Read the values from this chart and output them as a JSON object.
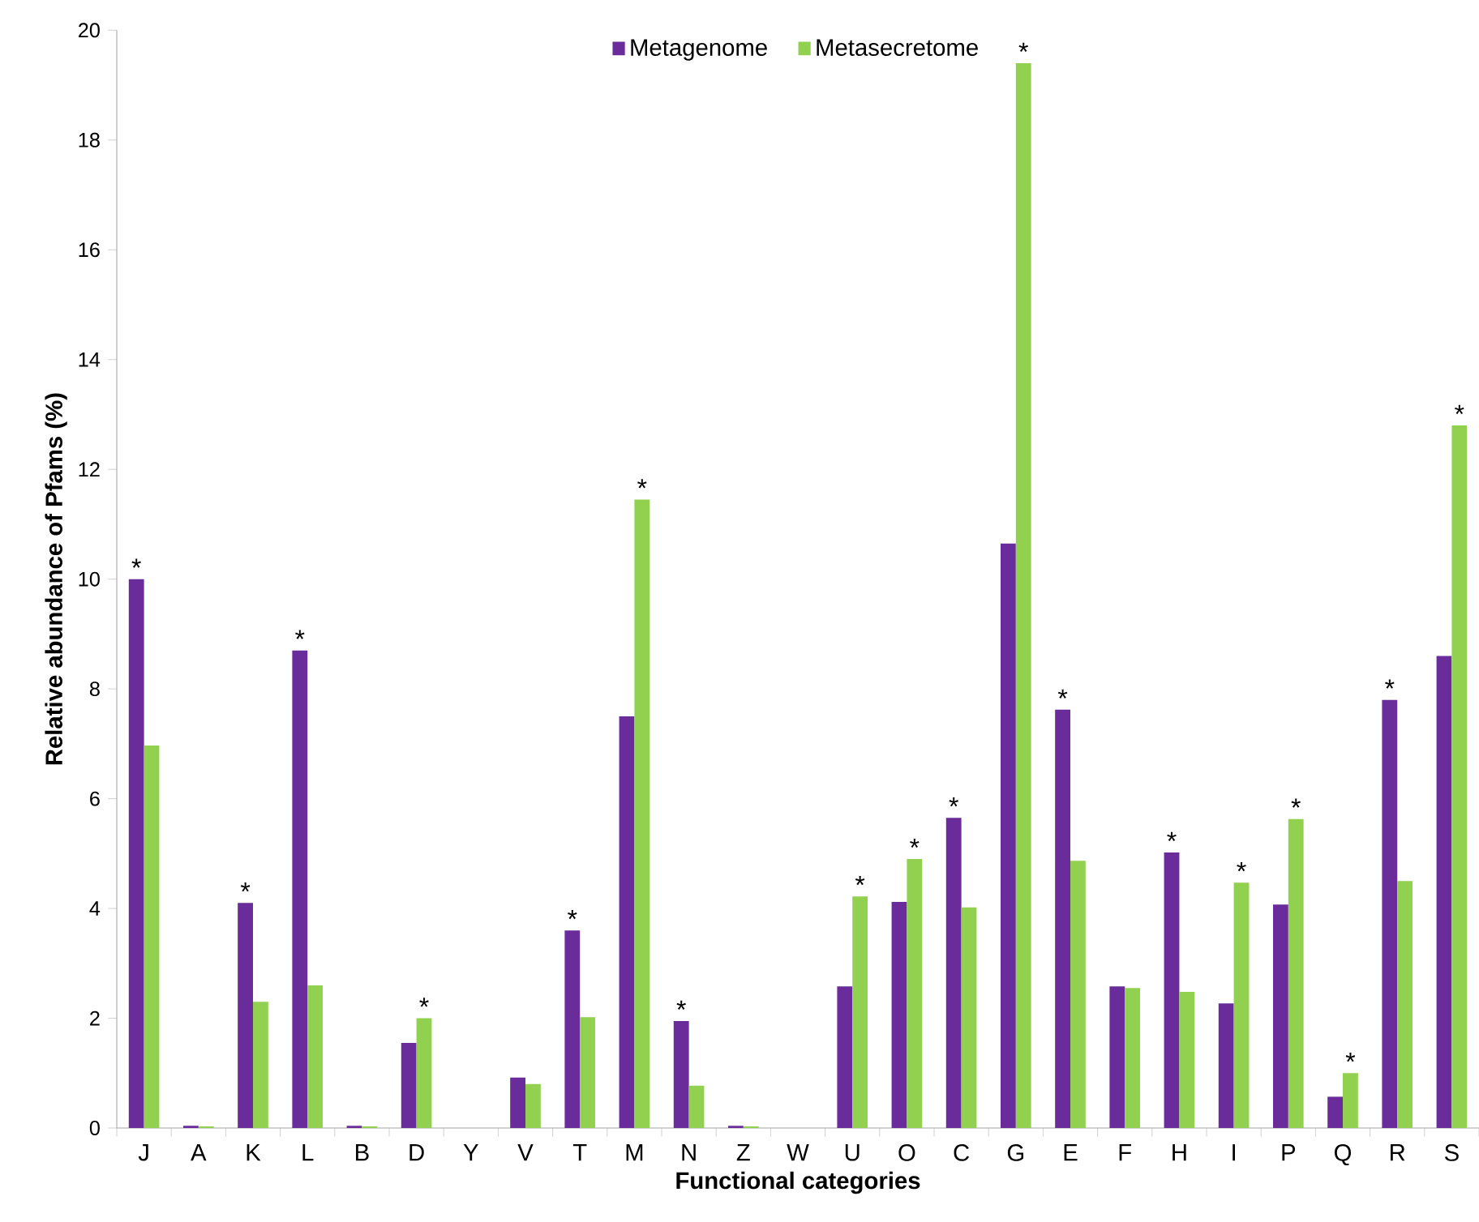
{
  "chart_data": {
    "type": "bar",
    "xlabel": "Functional categories",
    "ylabel": "Relative abundance of Pfams (%)",
    "categories": [
      "J",
      "A",
      "K",
      "L",
      "B",
      "D",
      "Y",
      "V",
      "T",
      "M",
      "N",
      "Z",
      "W",
      "U",
      "O",
      "C",
      "G",
      "E",
      "F",
      "H",
      "I",
      "P",
      "Q",
      "R",
      "S"
    ],
    "series": [
      {
        "name": "Metagenome",
        "color": "#6a2c9a",
        "values": [
          10.0,
          0.04,
          4.1,
          8.7,
          0.04,
          1.55,
          0,
          0.92,
          3.6,
          7.5,
          1.95,
          0.04,
          0,
          2.58,
          4.12,
          5.65,
          10.65,
          7.62,
          2.58,
          5.02,
          2.27,
          4.07,
          0.57,
          7.8,
          8.6
        ]
      },
      {
        "name": "Metasecretome",
        "color": "#92d050",
        "values": [
          6.97,
          0.03,
          2.3,
          2.6,
          0.03,
          2.0,
          0,
          0.8,
          2.02,
          11.45,
          0.77,
          0.03,
          0,
          4.22,
          4.9,
          4.02,
          19.4,
          4.87,
          2.55,
          2.48,
          4.47,
          5.63,
          1.0,
          4.5,
          12.8
        ]
      }
    ],
    "ylim": [
      0,
      20
    ],
    "yticks": [
      0,
      2,
      4,
      6,
      8,
      10,
      12,
      14,
      16,
      18,
      20
    ],
    "legend": "top",
    "grid": false,
    "annotations": [
      {
        "text": "*",
        "x": "J",
        "y": 10.0
      },
      {
        "text": "*",
        "x": "K",
        "y": 4.1
      },
      {
        "text": "*",
        "x": "L",
        "y": 8.7
      },
      {
        "text": "*",
        "x": "D",
        "y": 2.0
      },
      {
        "text": "*",
        "x": "T",
        "y": 3.6
      },
      {
        "text": "*",
        "x": "M",
        "y": 11.45
      },
      {
        "text": "*",
        "x": "N",
        "y": 1.95
      },
      {
        "text": "*",
        "x": "U",
        "y": 4.22
      },
      {
        "text": "*",
        "x": "O",
        "y": 4.9
      },
      {
        "text": "*",
        "x": "C",
        "y": 5.65
      },
      {
        "text": "*",
        "x": "G",
        "y": 19.4
      },
      {
        "text": "*",
        "x": "E",
        "y": 7.62
      },
      {
        "text": "*",
        "x": "H",
        "y": 5.02
      },
      {
        "text": "*",
        "x": "I",
        "y": 4.47
      },
      {
        "text": "*",
        "x": "P",
        "y": 5.63
      },
      {
        "text": "*",
        "x": "Q",
        "y": 1.0
      },
      {
        "text": "*",
        "x": "R",
        "y": 7.8
      },
      {
        "text": "*",
        "x": "S",
        "y": 12.8
      }
    ]
  }
}
